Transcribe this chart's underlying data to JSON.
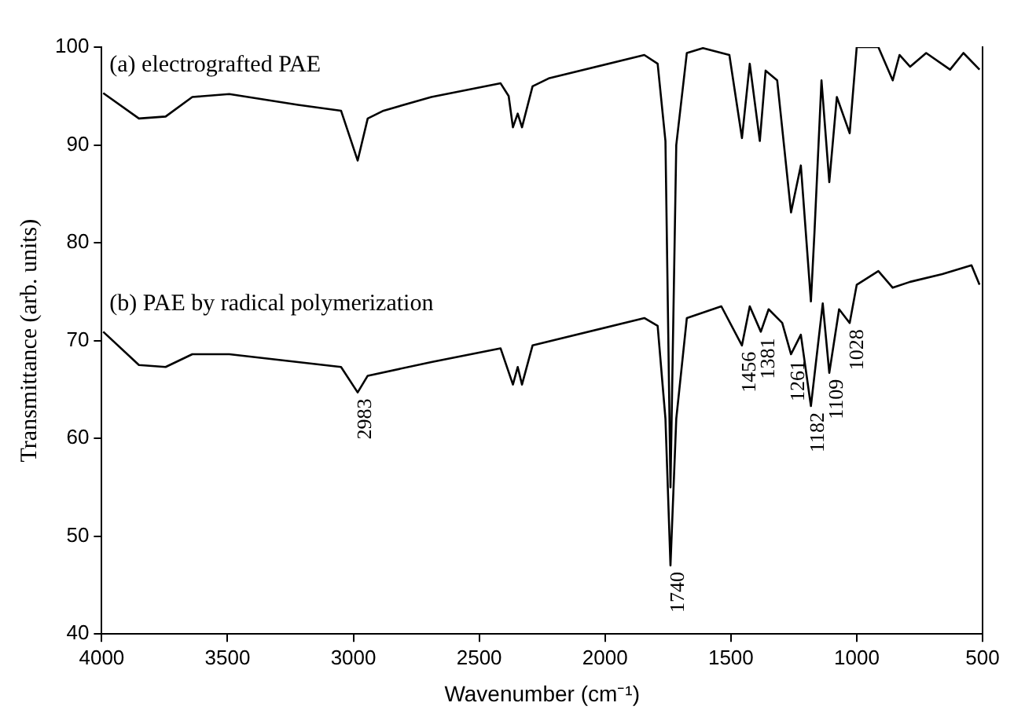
{
  "chart_data": {
    "type": "line",
    "xlabel": "Wavenumber (cm⁻¹)",
    "ylabel": "Transmittance (arb. units)",
    "xlim": [
      4000,
      500
    ],
    "xticks": [
      4000,
      3500,
      3000,
      2500,
      2000,
      1500,
      1000,
      500
    ],
    "ylim": [
      40,
      100
    ],
    "yticks": [
      40,
      50,
      60,
      70,
      80,
      90,
      100
    ],
    "grid": false,
    "legend": false,
    "marker": "none",
    "line_style": "solid",
    "series": [
      {
        "name": "(a) electrografted PAE",
        "color": "#000000",
        "x": [
          3994,
          3852,
          3746,
          3640,
          3493,
          3220,
          3049,
          2983,
          2943,
          2880,
          2690,
          2415,
          2383,
          2366,
          2347,
          2330,
          2288,
          2224,
          1844,
          1791,
          1760,
          1740,
          1717,
          1675,
          1611,
          1506,
          1456,
          1425,
          1385,
          1362,
          1316,
          1261,
          1222,
          1182,
          1168,
          1140,
          1109,
          1079,
          1028,
          1000,
          914,
          857,
          830,
          788,
          724,
          629,
          576,
          512
        ],
        "values": [
          95.3,
          92.7,
          92.9,
          94.9,
          95.2,
          94.1,
          93.5,
          88.4,
          92.7,
          93.5,
          94.9,
          96.3,
          95,
          91.8,
          93.2,
          91.8,
          96,
          96.8,
          99.2,
          98.3,
          90.4,
          55,
          90,
          99.4,
          99.9,
          99.2,
          90.7,
          98.3,
          90.4,
          97.6,
          96.6,
          83.1,
          87.9,
          74,
          81,
          96.6,
          86.2,
          94.9,
          91.2,
          100,
          100,
          96.6,
          99.2,
          98,
          99.4,
          97.7,
          99.4,
          97.7
        ]
      },
      {
        "name": "(b) PAE by radical polymerization",
        "color": "#000000",
        "x": [
          3994,
          3852,
          3746,
          3640,
          3493,
          3220,
          3049,
          2983,
          2943,
          2690,
          2415,
          2366,
          2347,
          2330,
          2288,
          1844,
          1791,
          1760,
          1740,
          1717,
          1675,
          1538,
          1456,
          1425,
          1381,
          1350,
          1296,
          1261,
          1222,
          1182,
          1135,
          1109,
          1070,
          1028,
          1000,
          914,
          857,
          788,
          660,
          544,
          512
        ],
        "values": [
          70.9,
          67.5,
          67.3,
          68.6,
          68.6,
          67.8,
          67.3,
          64.7,
          66.4,
          67.8,
          69.2,
          65.5,
          67.3,
          65.5,
          69.5,
          72.3,
          71.5,
          62,
          47,
          62,
          72.3,
          73.5,
          69.5,
          73.5,
          70.9,
          73.2,
          71.8,
          68.6,
          70.6,
          63.3,
          73.8,
          66.7,
          73.2,
          71.8,
          75.7,
          77.1,
          75.4,
          76,
          76.8,
          77.7,
          75.7
        ]
      }
    ],
    "annotations": [
      {
        "text": "2983",
        "x": 2983,
        "y": 64.7
      },
      {
        "text": "1740",
        "x": 1740,
        "y": 47
      },
      {
        "text": "1456",
        "x": 1456,
        "y": 69.5
      },
      {
        "text": "1381",
        "x": 1381,
        "y": 70.9
      },
      {
        "text": "1261",
        "x": 1261,
        "y": 68.6
      },
      {
        "text": "1182",
        "x": 1182,
        "y": 63.3
      },
      {
        "text": "1109",
        "x": 1109,
        "y": 66.7
      },
      {
        "text": "1028",
        "x": 1028,
        "y": 71.8
      }
    ]
  }
}
